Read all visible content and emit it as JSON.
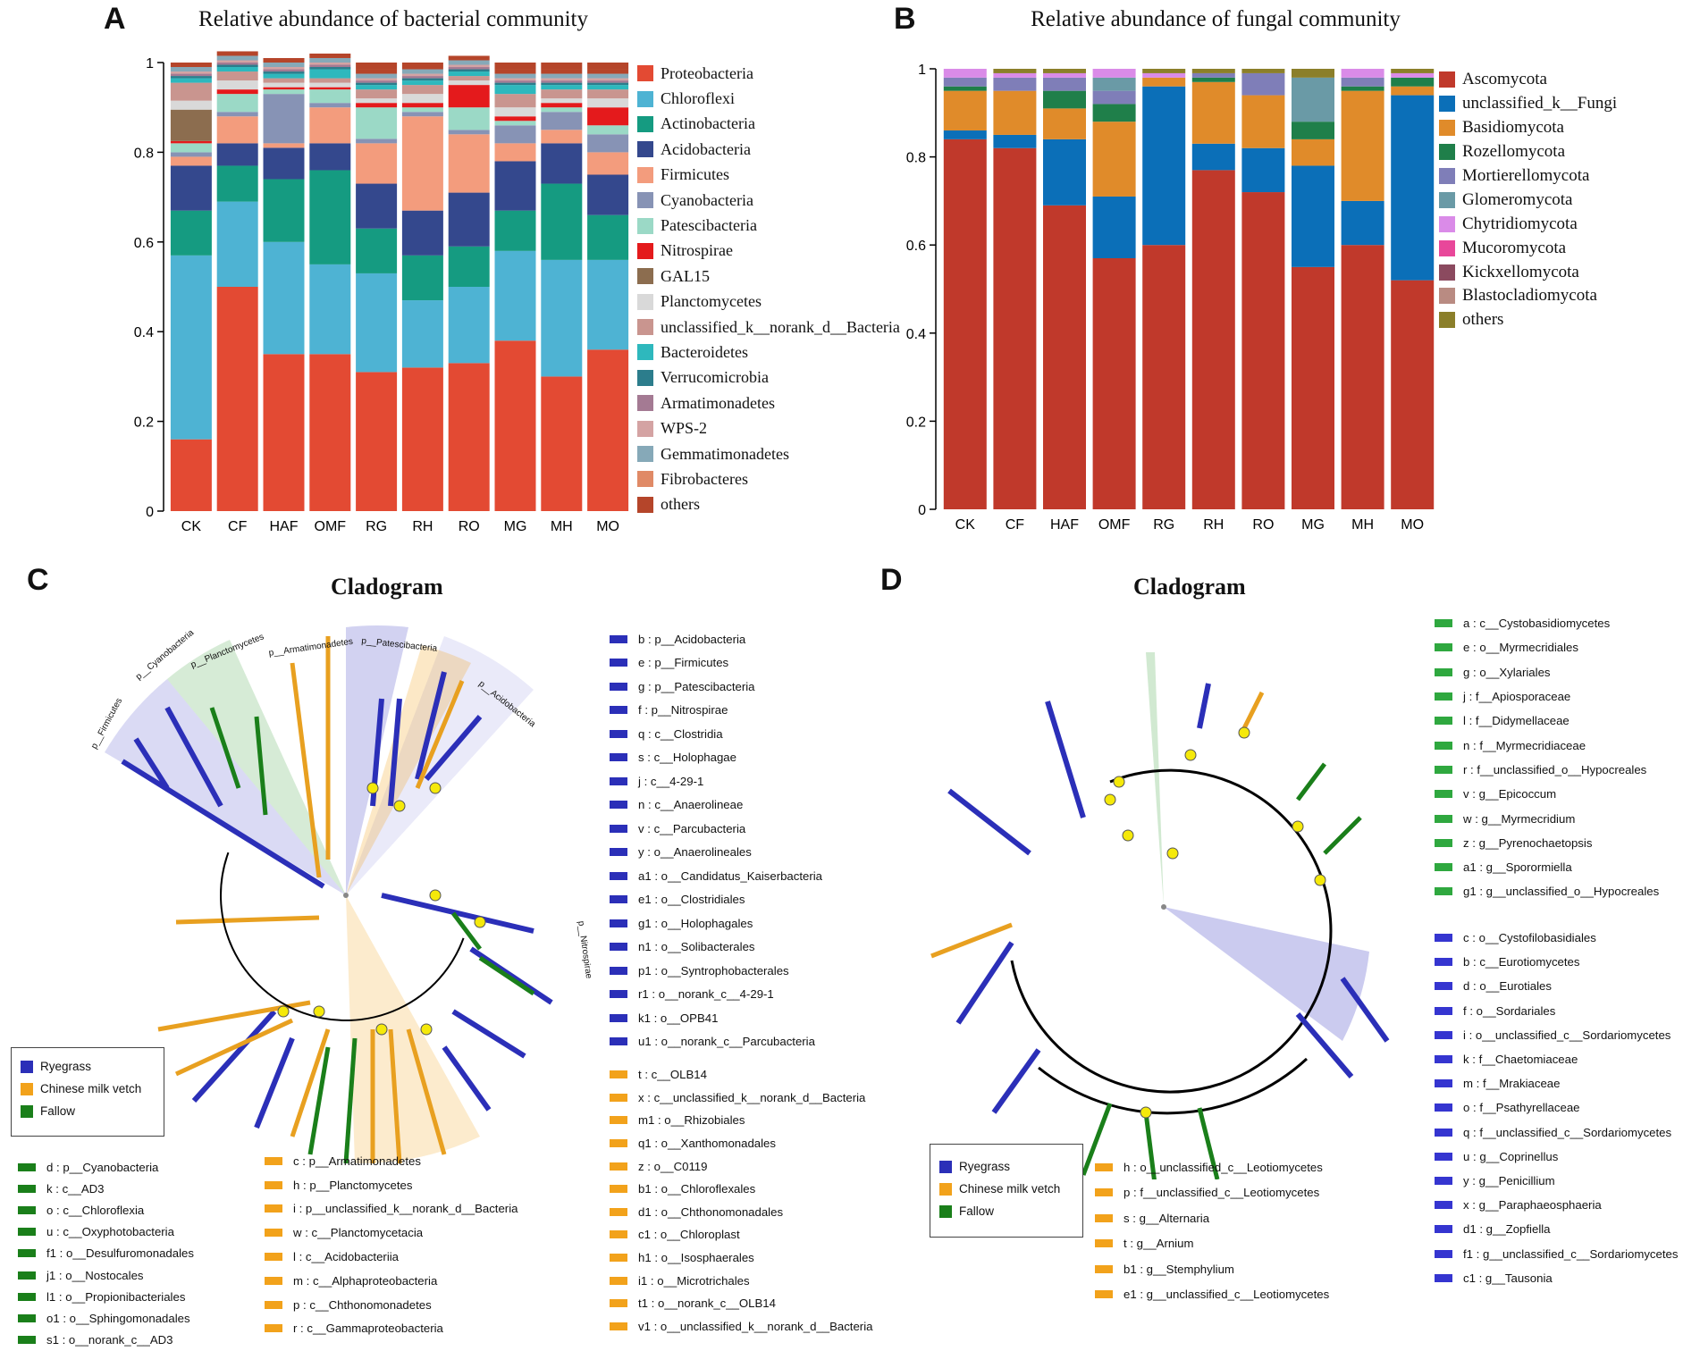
{
  "panels": {
    "a": "A",
    "b": "B",
    "c": "C",
    "d": "D"
  },
  "chart_data": [
    {
      "type": "bar",
      "stacked": true,
      "title": "Relative abundance of bacterial community",
      "categories": [
        "CK",
        "CF",
        "HAF",
        "OMF",
        "RG",
        "RH",
        "RO",
        "MG",
        "MH",
        "MO"
      ],
      "ylim": [
        0,
        1
      ],
      "yticks": [
        "0",
        "0.2",
        "0.4",
        "0.6",
        "0.8",
        "1"
      ],
      "series": [
        {
          "name": "Proteobacteria",
          "color": "#e34a33",
          "values": [
            0.16,
            0.5,
            0.35,
            0.35,
            0.31,
            0.32,
            0.33,
            0.38,
            0.3,
            0.36
          ]
        },
        {
          "name": "Chloroflexi",
          "color": "#4eb3d3",
          "values": [
            0.41,
            0.19,
            0.25,
            0.2,
            0.22,
            0.15,
            0.17,
            0.2,
            0.26,
            0.2
          ]
        },
        {
          "name": "Actinobacteria",
          "color": "#159b81",
          "values": [
            0.1,
            0.08,
            0.14,
            0.21,
            0.1,
            0.1,
            0.09,
            0.09,
            0.17,
            0.1
          ]
        },
        {
          "name": "Acidobacteria",
          "color": "#34488d",
          "values": [
            0.1,
            0.05,
            0.07,
            0.06,
            0.1,
            0.1,
            0.12,
            0.11,
            0.09,
            0.09
          ]
        },
        {
          "name": "Firmicutes",
          "color": "#f39c7d",
          "values": [
            0.02,
            0.06,
            0.01,
            0.08,
            0.09,
            0.21,
            0.13,
            0.04,
            0.03,
            0.05
          ]
        },
        {
          "name": "Cyanobacteria",
          "color": "#8793b5",
          "values": [
            0.01,
            0.01,
            0.11,
            0.01,
            0.01,
            0.01,
            0.01,
            0.04,
            0.04,
            0.04
          ]
        },
        {
          "name": "Patescibacteria",
          "color": "#9bd9c6",
          "values": [
            0.02,
            0.04,
            0.01,
            0.03,
            0.07,
            0.01,
            0.05,
            0.01,
            0.01,
            0.02
          ]
        },
        {
          "name": "Nitrospirae",
          "color": "#e41a1c",
          "values": [
            0.005,
            0.01,
            0.005,
            0.005,
            0.01,
            0.01,
            0.05,
            0.01,
            0.01,
            0.04
          ]
        },
        {
          "name": "GAL15",
          "color": "#8c6d4f",
          "values": [
            0.07,
            0.0,
            0.0,
            0.0,
            0.0,
            0.0,
            0.0,
            0.0,
            0.0,
            0.0
          ]
        },
        {
          "name": "Planctomycetes",
          "color": "#d9d9d9",
          "values": [
            0.02,
            0.02,
            0.01,
            0.01,
            0.01,
            0.02,
            0.01,
            0.02,
            0.01,
            0.02
          ]
        },
        {
          "name": "unclassified_k__norank_d__Bacteria",
          "color": "#c9958f",
          "values": [
            0.04,
            0.02,
            0.01,
            0.01,
            0.02,
            0.02,
            0.01,
            0.03,
            0.02,
            0.02
          ]
        },
        {
          "name": "Bacteroidetes",
          "color": "#2eb8bd",
          "values": [
            0.01,
            0.01,
            0.01,
            0.02,
            0.01,
            0.01,
            0.01,
            0.02,
            0.01,
            0.01
          ]
        },
        {
          "name": "Verrucomicrobia",
          "color": "#2c7d8c",
          "values": [
            0.005,
            0.005,
            0.005,
            0.005,
            0.005,
            0.005,
            0.005,
            0.005,
            0.005,
            0.005
          ]
        },
        {
          "name": "Armatimonadetes",
          "color": "#a47a93",
          "values": [
            0.005,
            0.005,
            0.005,
            0.005,
            0.005,
            0.005,
            0.005,
            0.005,
            0.005,
            0.005
          ]
        },
        {
          "name": "WPS-2",
          "color": "#d4a3a3",
          "values": [
            0.005,
            0.005,
            0.005,
            0.005,
            0.005,
            0.005,
            0.005,
            0.005,
            0.005,
            0.005
          ]
        },
        {
          "name": "Gemmatimonadetes",
          "color": "#86a9b8",
          "values": [
            0.01,
            0.01,
            0.01,
            0.01,
            0.01,
            0.01,
            0.01,
            0.01,
            0.01,
            0.01
          ]
        },
        {
          "name": "Fibrobacteres",
          "color": "#e08a66",
          "values": [
            0.0,
            0.0,
            0.0,
            0.0,
            0.0,
            0.0,
            0.0,
            0.0,
            0.0,
            0.0
          ]
        },
        {
          "name": "others",
          "color": "#b5452a",
          "values": [
            0.01,
            0.01,
            0.01,
            0.01,
            0.01,
            0.01,
            0.01,
            0.01,
            0.01,
            0.01
          ]
        }
      ]
    },
    {
      "type": "bar",
      "stacked": true,
      "title": "Relative abundance of fungal community",
      "categories": [
        "CK",
        "CF",
        "HAF",
        "OMF",
        "RG",
        "RH",
        "RO",
        "MG",
        "MH",
        "MO"
      ],
      "ylim": [
        0,
        1
      ],
      "yticks": [
        "0",
        "0.2",
        "0.4",
        "0.6",
        "0.8",
        "1"
      ],
      "series": [
        {
          "name": "Ascomycota",
          "color": "#c0392b",
          "values": [
            0.84,
            0.82,
            0.69,
            0.57,
            0.6,
            0.77,
            0.72,
            0.55,
            0.6,
            0.52
          ]
        },
        {
          "name": "unclassified_k__Fungi",
          "color": "#0b6fb8",
          "values": [
            0.02,
            0.03,
            0.15,
            0.14,
            0.36,
            0.06,
            0.1,
            0.23,
            0.1,
            0.42
          ]
        },
        {
          "name": "Basidiomycota",
          "color": "#e08b2a",
          "values": [
            0.09,
            0.1,
            0.07,
            0.17,
            0.02,
            0.14,
            0.12,
            0.06,
            0.25,
            0.02
          ]
        },
        {
          "name": "Rozellomycota",
          "color": "#1f7f4a",
          "values": [
            0.01,
            0.0,
            0.04,
            0.04,
            0.0,
            0.01,
            0.0,
            0.04,
            0.01,
            0.02
          ]
        },
        {
          "name": "Mortierellomycota",
          "color": "#7f7eb8",
          "values": [
            0.02,
            0.03,
            0.03,
            0.03,
            0.0,
            0.01,
            0.05,
            0.0,
            0.02,
            0.0
          ]
        },
        {
          "name": "Glomeromycota",
          "color": "#6a9aa6",
          "values": [
            0.0,
            0.0,
            0.0,
            0.03,
            0.0,
            0.0,
            0.0,
            0.1,
            0.0,
            0.0
          ]
        },
        {
          "name": "Chytridiomycota",
          "color": "#da8be8",
          "values": [
            0.02,
            0.01,
            0.01,
            0.02,
            0.01,
            0.0,
            0.0,
            0.0,
            0.02,
            0.01
          ]
        },
        {
          "name": "Mucoromycota",
          "color": "#e8479a",
          "values": [
            0.0,
            0.0,
            0.0,
            0.0,
            0.0,
            0.0,
            0.0,
            0.0,
            0.0,
            0.0
          ]
        },
        {
          "name": "Kickxellomycota",
          "color": "#8b4a5f",
          "values": [
            0.0,
            0.0,
            0.0,
            0.0,
            0.0,
            0.0,
            0.0,
            0.0,
            0.0,
            0.0
          ]
        },
        {
          "name": "Blastocladiomycota",
          "color": "#b98b82",
          "values": [
            0.0,
            0.0,
            0.0,
            0.0,
            0.0,
            0.0,
            0.0,
            0.0,
            0.0,
            0.0
          ]
        },
        {
          "name": "others",
          "color": "#8b7f2a",
          "values": [
            0.0,
            0.01,
            0.01,
            0.0,
            0.01,
            0.01,
            0.01,
            0.02,
            0.0,
            0.01
          ]
        }
      ]
    }
  ],
  "cladogram_c": {
    "title": "Cladogram",
    "branch_labels": [
      "p__Firmicutes",
      "p__Cyanobacteria",
      "p__Planctomycetes",
      "p__Armatimonadetes",
      "p__Patescibacteria",
      "p__Acidobacteria",
      "p__Nitrospirae"
    ],
    "groups": [
      {
        "label": "Ryegrass",
        "color": "#2b2fb8"
      },
      {
        "label": "Chinese milk vetch",
        "color": "#f2a21b"
      },
      {
        "label": "Fallow",
        "color": "#1a7f1a"
      }
    ],
    "ryegrass_list": [
      "b : p__Acidobacteria",
      "e : p__Firmicutes",
      "g : p__Patescibacteria",
      "f : p__Nitrospirae",
      "q : c__Clostridia",
      "s : c__Holophagae",
      "j : c__4-29-1",
      "n : c__Anaerolineae",
      "v : c__Parcubacteria",
      "y : o__Anaerolineales",
      "a1 : o__Candidatus_Kaiserbacteria",
      "e1 : o__Clostridiales",
      "g1 : o__Holophagales",
      "n1 : o__Solibacterales",
      "p1 : o__Syntrophobacterales",
      "r1 : o__norank_c__4-29-1",
      "k1 : o__OPB41",
      "u1 : o__norank_c__Parcubacteria"
    ],
    "vetch_list_right": [
      "t : c__OLB14",
      "x : c__unclassified_k__norank_d__Bacteria",
      "m1 : o__Rhizobiales",
      "q1 : o__Xanthomonadales",
      "z : o__C0119",
      "b1 : o__Chloroflexales",
      "d1 : o__Chthonomonadales",
      "c1 : o__Chloroplast",
      "h1 : o__Isosphaerales",
      "i1 : o__Microtrichales",
      "t1 : o__norank_c__OLB14",
      "v1 : o__unclassified_k__norank_d__Bacteria"
    ],
    "fallow_list": [
      "d : p__Cyanobacteria",
      "k : c__AD3",
      "o : c__Chloroflexia",
      "u : c__Oxyphotobacteria",
      "f1 : o__Desulfuromonadales",
      "j1 : o__Nostocales",
      "l1 : o__Propionibacteriales",
      "o1 : o__Sphingomonadales",
      "s1 : o__norank_c__AD3"
    ],
    "vetch_list_mid": [
      "c : p__Armatimonadetes",
      "h : p__Planctomycetes",
      "i : p__unclassified_k__norank_d__Bacteria",
      "w : c__Planctomycetacia",
      "l : c__Acidobacteriia",
      "m : c__Alphaproteobacteria",
      "p : c__Chthonomonadetes",
      "r : c__Gammaproteobacteria"
    ]
  },
  "cladogram_d": {
    "title": "Cladogram",
    "groups": [
      {
        "label": "Ryegrass",
        "color": "#2b2fb8"
      },
      {
        "label": "Chinese milk vetch",
        "color": "#f2a21b"
      },
      {
        "label": "Fallow",
        "color": "#1a7f1a"
      }
    ],
    "fallow_list": [
      "a : c__Cystobasidiomycetes",
      "e : o__Myrmecridiales",
      "g : o__Xylariales",
      "j : f__Apiosporaceae",
      "l : f__Didymellaceae",
      "n : f__Myrmecridiaceae",
      "r : f__unclassified_o__Hypocreales",
      "v : g__Epicoccum",
      "w : g__Myrmecridium",
      "z : g__Pyrenochaetopsis",
      "a1 : g__Sporormiella",
      "g1 : g__unclassified_o__Hypocreales"
    ],
    "ryegrass_list": [
      "c : o__Cystofilobasidiales",
      "b : c__Eurotiomycetes",
      "d : o__Eurotiales",
      "f : o__Sordariales",
      "i : o__unclassified_c__Sordariomycetes",
      "k : f__Chaetomiaceae",
      "m : f__Mrakiaceae",
      "o : f__Psathyrellaceae",
      "q : f__unclassified_c__Sordariomycetes",
      "u : g__Coprinellus",
      "y : g__Penicillium",
      "x : g__Paraphaeosphaeria",
      "d1 : g__Zopfiella",
      "f1 : g__unclassified_c__Sordariomycetes",
      "c1 : g__Tausonia"
    ],
    "vetch_list": [
      "h : o__unclassified_c__Leotiomycetes",
      "p : f__unclassified_c__Leotiomycetes",
      "s : g__Alternaria",
      "t : g__Arnium",
      "b1 : g__Stemphylium",
      "e1 : g__unclassified_c__Leotiomycetes"
    ]
  }
}
